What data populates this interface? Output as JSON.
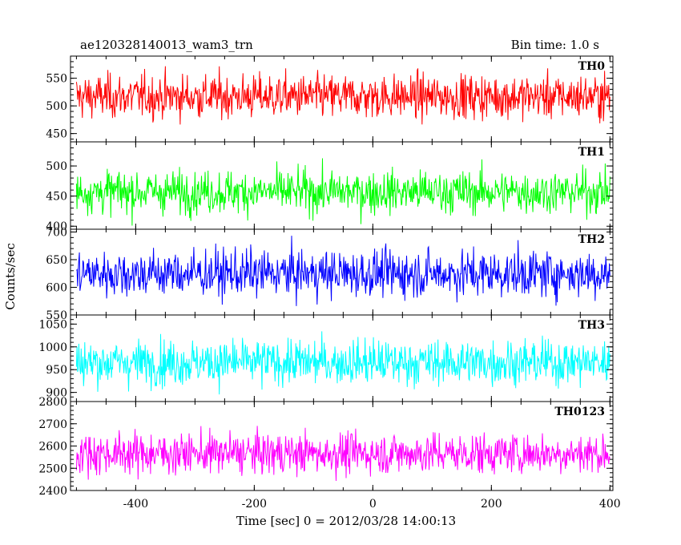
{
  "chart_data": {
    "type": "line",
    "title": "ae120328140013_wam3_trn",
    "subtitle": "Bin time: 1.0 s",
    "xlabel": "Time [sec] 0 = 2012/03/28 14:00:13",
    "ylabel": "Counts/sec",
    "xlim": [
      -510,
      405
    ],
    "x_start": -500,
    "x_end": 400,
    "x_step": 1,
    "x_ticks": [
      -400,
      -200,
      0,
      200,
      400
    ],
    "panels": [
      {
        "name": "TH0",
        "color": "#ff0000",
        "ylim": [
          435,
          590
        ],
        "y_ticks": [
          450,
          500,
          550
        ],
        "mean": 517,
        "std": 28
      },
      {
        "name": "TH1",
        "color": "#00ff00",
        "ylim": [
          395,
          540
        ],
        "y_ticks": [
          400,
          450,
          500
        ],
        "mean": 457,
        "std": 25
      },
      {
        "name": "TH2",
        "color": "#0000ff",
        "ylim": [
          550,
          705
        ],
        "y_ticks": [
          550,
          600,
          650,
          700
        ],
        "mean": 625,
        "std": 30
      },
      {
        "name": "TH3",
        "color": "#00ffff",
        "ylim": [
          880,
          1070
        ],
        "y_ticks": [
          900,
          950,
          1000,
          1050
        ],
        "mean": 966,
        "std": 35
      },
      {
        "name": "TH0123",
        "color": "#ff00ff",
        "ylim": [
          2400,
          2800
        ],
        "y_ticks": [
          2400,
          2500,
          2600,
          2700,
          2800
        ],
        "mean": 2567,
        "std": 65
      }
    ]
  }
}
